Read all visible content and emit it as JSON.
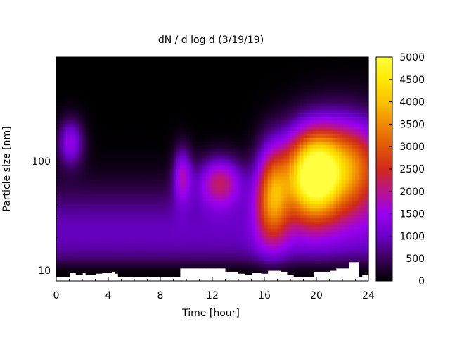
{
  "chart_data": {
    "type": "heatmap",
    "title": "dN / d log d (3/19/19)",
    "xlabel": "Time [hour]",
    "ylabel": "Particle size [nm]",
    "x_range": [
      0,
      24
    ],
    "x_ticks": [
      0,
      4,
      8,
      12,
      16,
      20,
      24
    ],
    "y_scale": "log",
    "y_range": [
      8.0,
      900
    ],
    "y_ticks": [
      {
        "value": 10,
        "label": "10"
      },
      {
        "value": 100,
        "label": "100"
      }
    ],
    "colorbar": {
      "range": [
        0,
        5000
      ],
      "ticks": [
        0,
        500,
        1000,
        1500,
        2000,
        2500,
        3000,
        3500,
        4000,
        4500,
        5000
      ],
      "palette": [
        "#000000",
        "#3a005a",
        "#6a00c8",
        "#9a00f0",
        "#b8138c",
        "#d02a1a",
        "#e05808",
        "#f08a00",
        "#fac200",
        "#ffe800",
        "#ffff40"
      ]
    },
    "background_level": 600,
    "blobs": [
      {
        "time_h": 1.1,
        "size_nm": 150,
        "amplitude": 1400,
        "sigma_time_h": 0.7,
        "sigma_log_size": 0.15
      },
      {
        "time_h": 9.7,
        "size_nm": 75,
        "amplitude": 1500,
        "sigma_time_h": 0.5,
        "sigma_log_size": 0.18
      },
      {
        "time_h": 12.6,
        "size_nm": 65,
        "amplitude": 1900,
        "sigma_time_h": 1.2,
        "sigma_log_size": 0.16
      },
      {
        "time_h": 16.6,
        "size_nm": 50,
        "amplitude": 2900,
        "sigma_time_h": 0.9,
        "sigma_log_size": 0.3
      },
      {
        "time_h": 19.6,
        "size_nm": 75,
        "amplitude": 4500,
        "sigma_time_h": 1.5,
        "sigma_log_size": 0.28
      },
      {
        "time_h": 22.5,
        "size_nm": 90,
        "amplitude": 3200,
        "sigma_time_h": 2.2,
        "sigma_log_size": 0.3
      }
    ],
    "min_size_nm": [
      [
        0,
        8.8
      ],
      [
        1.0,
        9.6
      ],
      [
        1.6,
        9.2
      ],
      [
        2.0,
        9.6
      ],
      [
        2.2,
        9.2
      ],
      [
        3.0,
        9.4
      ],
      [
        3.5,
        9.6
      ],
      [
        4.2,
        9.8
      ],
      [
        4.6,
        9.4
      ],
      [
        4.8,
        8.7
      ],
      [
        9.4,
        8.7
      ],
      [
        9.6,
        10.5
      ],
      [
        12.2,
        10.5
      ],
      [
        13.0,
        9.8
      ],
      [
        14.0,
        9.4
      ],
      [
        14.5,
        9.2
      ],
      [
        15.0,
        9.6
      ],
      [
        15.8,
        9.4
      ],
      [
        16.2,
        10.0
      ],
      [
        17.2,
        9.8
      ],
      [
        17.8,
        9.2
      ],
      [
        18.2,
        8.7
      ],
      [
        19.4,
        8.7
      ],
      [
        19.8,
        9.8
      ],
      [
        21.0,
        10.0
      ],
      [
        21.6,
        10.5
      ],
      [
        22.4,
        12.0
      ],
      [
        23.2,
        8.7
      ],
      [
        23.4,
        12.0
      ],
      [
        23.6,
        9.2
      ],
      [
        24.0,
        9.2
      ]
    ]
  }
}
